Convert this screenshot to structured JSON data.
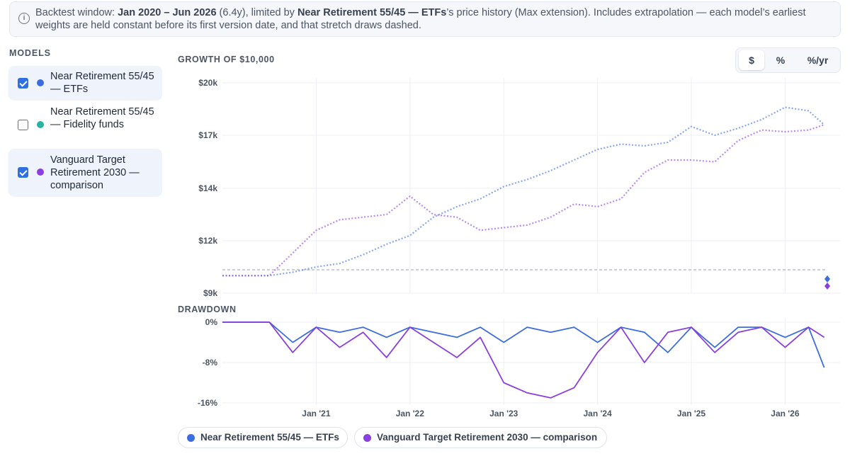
{
  "banner": {
    "icon": "info-icon",
    "text_prefix": "Backtest window: ",
    "window": "Jan 2020 – Jun 2026",
    "text_mid1": " (6.4y), limited by ",
    "limiter": "Near Retirement 55/45 — ETFs",
    "text_rest": "’s price history (Max extension). Includes extrapolation — each model’s earliest weights are held constant before its first version date, and that stretch draws dashed."
  },
  "models": {
    "heading": "MODELS",
    "items": [
      {
        "label": "Near Retirement 55/45 — ETFs",
        "checked": true,
        "color": "#3b6de0"
      },
      {
        "label": "Near Retirement 55/45 — Fidelity funds",
        "checked": false,
        "color": "#27b3a0"
      },
      {
        "label": "Vanguard Target Retirement 2030 — comparison",
        "checked": true,
        "color": "#8a3fe0"
      }
    ]
  },
  "growth": {
    "title": "GROWTH OF $10,000",
    "toggle": [
      "$",
      "%",
      "%/yr"
    ],
    "toggle_selected": "$"
  },
  "drawdown": {
    "title": "DRAWDOWN"
  },
  "legend": [
    {
      "label": "Near Retirement 55/45 — ETFs",
      "color": "#3b6de0"
    },
    {
      "label": "Vanguard Target Retirement 2030 — comparison",
      "color": "#8a3fe0"
    }
  ],
  "chart_data": [
    {
      "type": "line",
      "title": "GROWTH OF $10,000",
      "x": [
        "2020-07",
        "2020-10",
        "2021-01",
        "2021-04",
        "2021-07",
        "2021-10",
        "2022-01",
        "2022-04",
        "2022-07",
        "2022-10",
        "2023-01",
        "2023-04",
        "2023-07",
        "2023-10",
        "2024-01",
        "2024-04",
        "2024-07",
        "2024-10",
        "2025-01",
        "2025-04",
        "2025-07",
        "2025-10",
        "2026-01",
        "2026-04",
        "2026-06"
      ],
      "y_ticks": [
        "$9k",
        "$12k",
        "$14k",
        "$17k",
        "$20k"
      ],
      "ylim": [
        9000,
        20000
      ],
      "x_ticks": [
        "Jan '21",
        "Jan '22",
        "Jan '23",
        "Jan '24",
        "Jan '25",
        "Jan '26"
      ],
      "baseline": 10000,
      "series": [
        {
          "name": "Near Retirement 55/45 — ETFs",
          "color": "#3b6de0",
          "dashed": true,
          "values": [
            10000,
            10200,
            10500,
            10700,
            11200,
            11800,
            12200,
            12900,
            13300,
            13600,
            14100,
            14500,
            15000,
            15600,
            16200,
            16500,
            16400,
            16600,
            17500,
            17000,
            17400,
            17900,
            18600,
            18400,
            17600
          ]
        },
        {
          "name": "Vanguard Target Retirement 2030 — comparison",
          "color": "#8a3fe0",
          "dashed": true,
          "values": [
            10000,
            11300,
            12400,
            12800,
            12900,
            13000,
            13700,
            13000,
            12900,
            12400,
            12500,
            12600,
            12900,
            13400,
            13300,
            13600,
            14900,
            15600,
            15600,
            15500,
            16700,
            17300,
            17200,
            17300,
            17600
          ]
        }
      ]
    },
    {
      "type": "line",
      "title": "DRAWDOWN",
      "x": [
        "2020-07",
        "2020-10",
        "2021-01",
        "2021-04",
        "2021-07",
        "2021-10",
        "2022-01",
        "2022-04",
        "2022-07",
        "2022-10",
        "2023-01",
        "2023-04",
        "2023-07",
        "2023-10",
        "2024-01",
        "2024-04",
        "2024-07",
        "2024-10",
        "2025-01",
        "2025-04",
        "2025-07",
        "2025-10",
        "2026-01",
        "2026-04",
        "2026-06"
      ],
      "y_ticks": [
        "0%",
        "-8%",
        "-16%"
      ],
      "ylim": [
        -16,
        0
      ],
      "x_ticks": [
        "Jan '21",
        "Jan '22",
        "Jan '23",
        "Jan '24",
        "Jan '25",
        "Jan '26"
      ],
      "series": [
        {
          "name": "Near Retirement 55/45 — ETFs",
          "color": "#3b6de0",
          "values": [
            0,
            -4,
            -1,
            -2,
            -1,
            -3,
            -1,
            -2,
            -3,
            -1,
            -4,
            -1,
            -2,
            -1,
            -4,
            -1,
            -2,
            -6,
            -1,
            -5,
            -1,
            -1,
            -3,
            -1,
            -9
          ]
        },
        {
          "name": "Vanguard Target Retirement 2030 — comparison",
          "color": "#8a3fe0",
          "values": [
            0,
            -6,
            -1,
            -5,
            -2,
            -7,
            -1,
            -4,
            -7,
            -3,
            -12,
            -14,
            -15,
            -13,
            -6,
            -1,
            -8,
            -2,
            -1,
            -6,
            -2,
            -1,
            -5,
            -1,
            -3
          ]
        }
      ]
    }
  ]
}
